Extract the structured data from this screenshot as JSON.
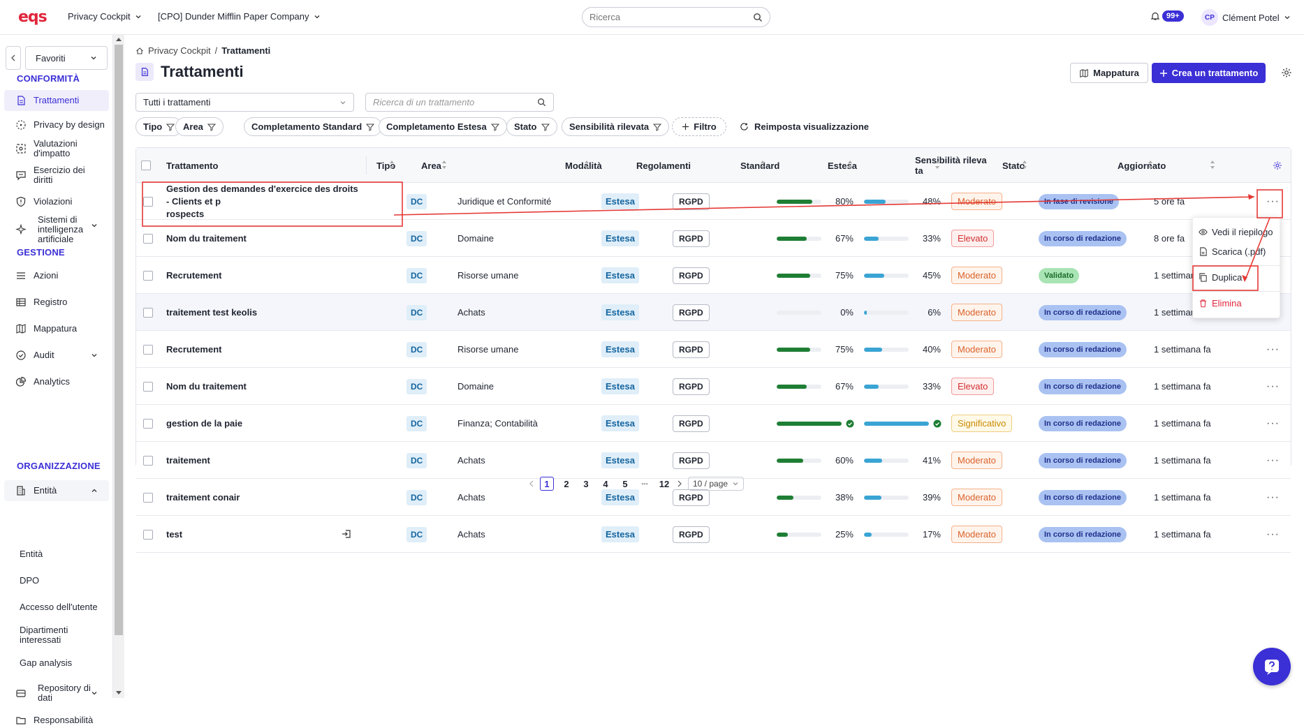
{
  "app": {
    "logo": "eqs",
    "module": "Privacy Cockpit",
    "company": "[CPO] Dunder Mifflin Paper Company",
    "search_placeholder": "Ricerca",
    "notif_count": "99+",
    "user_initials": "CP",
    "user_name": "Clément Potel"
  },
  "sidebar": {
    "favorites": "Favoriti",
    "sec_conf": "CONFORMITÀ",
    "sec_gest": "GESTIONE",
    "sec_org": "ORGANIZZAZIONE",
    "trattamenti": "Trattamenti",
    "pbd": "Privacy by design",
    "valutazioni": "Valutazioni d'impatto",
    "esercizio": "Esercizio dei diritti",
    "violazioni": "Violazioni",
    "sistemi": "Sistemi di intelligenza artificiale",
    "azioni": "Azioni",
    "registro": "Registro",
    "mappatura": "Mappatura",
    "audit": "Audit",
    "analytics": "Analytics",
    "entita": "Entità",
    "sub_entita": "Entità",
    "sub_dpo": "DPO",
    "sub_accesso": "Accesso dell'utente",
    "sub_dip": "Dipartimenti interessati",
    "sub_gap": "Gap analysis",
    "repo": "Repository di dati",
    "resp": "Responsabilità"
  },
  "page": {
    "crumb_root": "Privacy Cockpit",
    "crumb_current": "Trattamenti",
    "title": "Trattamenti",
    "btn_map": "Mappatura",
    "btn_create": "Crea un trattamento",
    "select_all": "Tutti i trattamenti",
    "search_placeholder": "Ricerca di un trattamento"
  },
  "filters": {
    "tipo": "Tipo",
    "area": "Area",
    "std": "Completamento Standard",
    "est": "Completamento Estesa",
    "stato": "Stato",
    "sens": "Sensibilità rilevata",
    "add": "Filtro",
    "reset": "Reimposta visualizzazione"
  },
  "columns": {
    "trattamento": "Trattamento",
    "tipo": "Tipo",
    "area": "Area",
    "modalita": "Modalità",
    "regolamenti": "Regolamenti",
    "standard": "Standard",
    "estesa": "Estesa",
    "sens_line1": "Sensibilità rileva",
    "sens_line2": "ta",
    "stato": "Stato",
    "aggiornato": "Aggiornato"
  },
  "colors": {
    "accent": "#3b2fd6",
    "green": "#1e7e34",
    "blue": "#3aa4d4",
    "red": "#e0263c"
  },
  "rows": [
    {
      "name1": "Gestion des demandes d'exercice des droits - Clients et p",
      "name2": "rospects",
      "tipo": "DC",
      "area": "Juridique et Conformité",
      "mod": "Estesa",
      "reg": "RGPD",
      "std": 80,
      "std_label": "80%",
      "est": 48,
      "est_label": "48%",
      "sens": "Moderato",
      "stato": "In fase di revisione",
      "agg": "5 ore fa"
    },
    {
      "name1": "Nom du traitement",
      "name2": "",
      "tipo": "DC",
      "area": "Domaine",
      "mod": "Estesa",
      "reg": "RGPD",
      "std": 67,
      "std_label": "67%",
      "est": 33,
      "est_label": "33%",
      "sens": "Elevato",
      "stato": "In corso di redazione",
      "agg": "8 ore fa"
    },
    {
      "name1": "Recrutement",
      "name2": "",
      "tipo": "DC",
      "area": "Risorse umane",
      "mod": "Estesa",
      "reg": "RGPD",
      "std": 75,
      "std_label": "75%",
      "est": 45,
      "est_label": "45%",
      "sens": "Moderato",
      "stato": "Validato",
      "agg": "1 settimana fa"
    },
    {
      "name1": "traitement test keolis",
      "name2": "",
      "tipo": "DC",
      "area": "Achats",
      "mod": "Estesa",
      "reg": "RGPD",
      "std": 0,
      "std_label": "0%",
      "est": 6,
      "est_label": "6%",
      "sens": "Moderato",
      "stato": "In corso di redazione",
      "agg": "1 settimana fa"
    },
    {
      "name1": "Recrutement",
      "name2": "",
      "tipo": "DC",
      "area": "Risorse umane",
      "mod": "Estesa",
      "reg": "RGPD",
      "std": 75,
      "std_label": "75%",
      "est": 40,
      "est_label": "40%",
      "sens": "Moderato",
      "stato": "In corso di redazione",
      "agg": "1 settimana fa"
    },
    {
      "name1": "Nom du traitement",
      "name2": "",
      "tipo": "DC",
      "area": "Domaine",
      "mod": "Estesa",
      "reg": "RGPD",
      "std": 67,
      "std_label": "67%",
      "est": 33,
      "est_label": "33%",
      "sens": "Elevato",
      "stato": "In corso di redazione",
      "agg": "1 settimana fa"
    },
    {
      "name1": "gestion de la paie",
      "name2": "",
      "tipo": "DC",
      "area": "Finanza; Contabilità",
      "mod": "Estesa",
      "reg": "RGPD",
      "std": 100,
      "std_label": "",
      "est": 100,
      "est_label": "",
      "sens": "Significativo",
      "stato": "In corso di redazione",
      "agg": "1 settimana fa"
    },
    {
      "name1": "traitement",
      "name2": "",
      "tipo": "DC",
      "area": "Achats",
      "mod": "Estesa",
      "reg": "RGPD",
      "std": 60,
      "std_label": "60%",
      "est": 41,
      "est_label": "41%",
      "sens": "Moderato",
      "stato": "In corso di redazione",
      "agg": "1 settimana fa"
    },
    {
      "name1": "traitement conair",
      "name2": "",
      "tipo": "DC",
      "area": "Achats",
      "mod": "Estesa",
      "reg": "RGPD",
      "std": 38,
      "std_label": "38%",
      "est": 39,
      "est_label": "39%",
      "sens": "Moderato",
      "stato": "In corso di redazione",
      "agg": "1 settimana fa"
    },
    {
      "name1": "test",
      "name2": "",
      "tipo": "DC",
      "area": "Achats",
      "mod": "Estesa",
      "reg": "RGPD",
      "std": 25,
      "std_label": "25%",
      "est": 17,
      "est_label": "17%",
      "sens": "Moderato",
      "stato": "In corso di redazione",
      "agg": "1 settimana fa"
    }
  ],
  "menu": {
    "vedi": "Vedi il riepilogo",
    "scarica": "Scarica (.pdf)",
    "duplica": "Duplica",
    "elimina": "Elimina"
  },
  "pager": {
    "p1": "1",
    "p2": "2",
    "p3": "3",
    "p4": "4",
    "p5": "5",
    "more": "•••",
    "last": "12",
    "per_page": "10 / page"
  }
}
